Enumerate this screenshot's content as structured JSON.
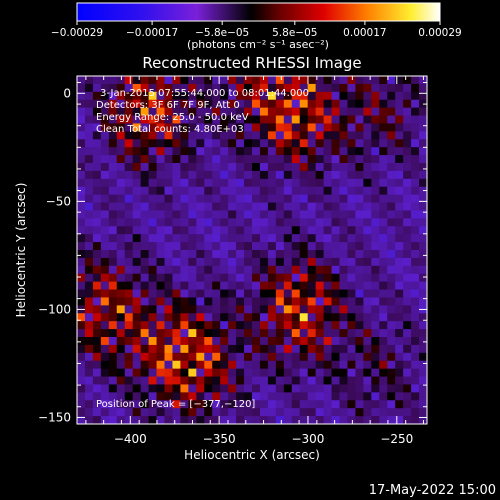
{
  "chart_data": {
    "type": "heatmap",
    "title": "Reconstructed RHESSI Image",
    "xlabel": "Heliocentric X (arcsec)",
    "ylabel": "Heliocentric Y (arcsec)",
    "xlim": [
      -430,
      -233
    ],
    "ylim": [
      -153,
      8
    ],
    "x_ticks": [
      -400,
      -350,
      -300,
      -250
    ],
    "x_tick_labels": [
      "−400",
      "−350",
      "−300",
      "−250"
    ],
    "y_ticks": [
      0,
      -50,
      -100,
      -150
    ],
    "y_tick_labels": [
      "0",
      "−50",
      "−100",
      "−150"
    ],
    "colorbar": {
      "ticks": [
        -0.00029,
        -0.00017,
        -5.8e-05,
        5.8e-05,
        0.00017,
        0.00029
      ],
      "tick_labels": [
        "−0.00029",
        "−0.00017",
        "−5.8e−05",
        "5.8e−05",
        "0.00017",
        "0.00029"
      ],
      "unit_label": "(photons cm⁻² s⁻¹ asec⁻²)",
      "range": [
        -0.00029,
        0.00029
      ]
    },
    "annotations": [
      "3-Jan-2015 07:55:44.000 to 08:01:44.000",
      "Detectors: 3F 6F 7F 9F, Att 0",
      "Energy Range: 25.0 - 50.0 keV",
      "Clean    Total counts: 4.80E+03"
    ],
    "peak_label": "Position of Peak = [−377,−120]",
    "peak": [
      -377,
      -120
    ],
    "sources": [
      {
        "x": -390,
        "y": -8,
        "strength": 1.0
      },
      {
        "x": -330,
        "y": 5,
        "strength": 0.55
      },
      {
        "x": -305,
        "y": -10,
        "strength": 0.9
      },
      {
        "x": -258,
        "y": -8,
        "strength": 0.45
      },
      {
        "x": -305,
        "y": -100,
        "strength": 1.0
      },
      {
        "x": -415,
        "y": -100,
        "strength": 0.85
      },
      {
        "x": -377,
        "y": -120,
        "strength": 0.7
      },
      {
        "x": -360,
        "y": -125,
        "strength": 0.6
      },
      {
        "x": -260,
        "y": -128,
        "strength": 0.35
      }
    ]
  },
  "footer": {
    "date": "17-May-2022 15:00"
  }
}
